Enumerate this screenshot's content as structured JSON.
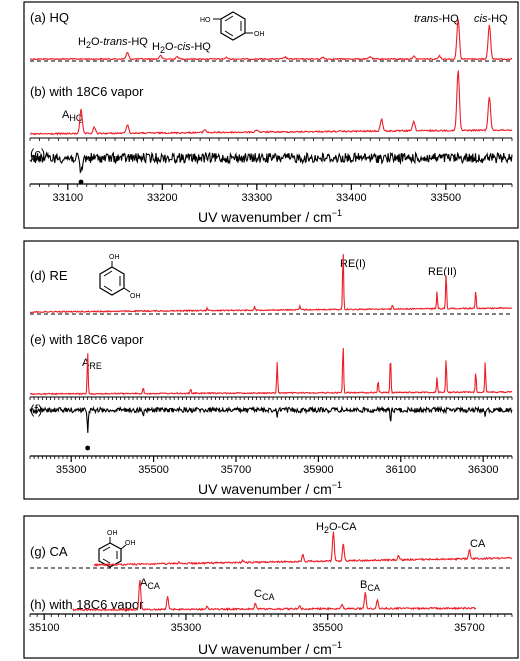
{
  "chart_data": [
    {
      "type": "line",
      "xlabel": "UV wavenumber / cm",
      "xlabel_sup": "−1",
      "xlim": [
        33060,
        33570
      ],
      "xticks": [
        33100,
        33200,
        33300,
        33400,
        33500
      ],
      "tick_labels": [
        "33100",
        "33200",
        "33300",
        "33400",
        "33500"
      ],
      "grid": false,
      "traces": [
        {
          "panel": "(a) HQ",
          "color": "#ee1c25",
          "peaks": [
            {
              "x": 33163,
              "h": 0.16
            },
            {
              "x": 33198,
              "h": 0.09
            },
            {
              "x": 33216,
              "h": 0.06
            },
            {
              "x": 33268,
              "h": 0.04
            },
            {
              "x": 33330,
              "h": 0.05
            },
            {
              "x": 33370,
              "h": 0.04
            },
            {
              "x": 33420,
              "h": 0.06
            },
            {
              "x": 33466,
              "h": 0.07
            },
            {
              "x": 33493,
              "h": 0.08
            },
            {
              "x": 33513,
              "h": 1.0
            },
            {
              "x": 33546,
              "h": 0.85
            }
          ]
        },
        {
          "panel": "(b) with 18C6 vapor",
          "color": "#ee1c25",
          "peaks": [
            {
              "x": 33114,
              "h": 0.4
            },
            {
              "x": 33128,
              "h": 0.1
            },
            {
              "x": 33163,
              "h": 0.14
            },
            {
              "x": 33245,
              "h": 0.05
            },
            {
              "x": 33300,
              "h": 0.04
            },
            {
              "x": 33432,
              "h": 0.2
            },
            {
              "x": 33466,
              "h": 0.15
            },
            {
              "x": 33513,
              "h": 1.0
            },
            {
              "x": 33546,
              "h": 0.55
            }
          ]
        },
        {
          "panel": "(c)",
          "color": "#000000",
          "peaks": [
            {
              "x": 33114,
              "h": -0.6
            }
          ]
        }
      ],
      "labels": [
        {
          "text": "(a) HQ",
          "kind": "panel"
        },
        {
          "text": "H₂O-trans-HQ",
          "x": 33163
        },
        {
          "text": "H₂O-cis-HQ",
          "x": 33200
        },
        {
          "text": "trans-HQ",
          "x": 33513
        },
        {
          "text": "cis-HQ",
          "x": 33546
        },
        {
          "text": "(b) with 18C6 vapor",
          "kind": "panel"
        },
        {
          "text": "A",
          "sub": "HQ",
          "x": 33114
        },
        {
          "text": "(c)",
          "kind": "panel"
        }
      ]
    },
    {
      "type": "line",
      "xlabel": "UV wavenumber / cm",
      "xlabel_sup": "−1",
      "xlim": [
        35200,
        36370
      ],
      "xticks": [
        35300,
        35500,
        35700,
        35900,
        36100,
        36300
      ],
      "tick_labels": [
        "35300",
        "35500",
        "35700",
        "35900",
        "36100",
        "36300"
      ],
      "grid": false,
      "traces": [
        {
          "panel": "(d) RE",
          "color": "#ee1c25",
          "peaks": [
            {
              "x": 35630,
              "h": 0.05
            },
            {
              "x": 35745,
              "h": 0.06
            },
            {
              "x": 35855,
              "h": 0.06
            },
            {
              "x": 35960,
              "h": 1.0
            },
            {
              "x": 36080,
              "h": 0.08
            },
            {
              "x": 36188,
              "h": 0.28
            },
            {
              "x": 36210,
              "h": 0.6
            },
            {
              "x": 36282,
              "h": 0.3
            }
          ]
        },
        {
          "panel": "(e) with 18C6 vapor",
          "color": "#ee1c25",
          "peaks": [
            {
              "x": 35340,
              "h": 0.72
            },
            {
              "x": 35475,
              "h": 0.1
            },
            {
              "x": 35590,
              "h": 0.08
            },
            {
              "x": 35800,
              "h": 0.52
            },
            {
              "x": 35960,
              "h": 0.82
            },
            {
              "x": 36045,
              "h": 0.2
            },
            {
              "x": 36075,
              "h": 0.62
            },
            {
              "x": 36188,
              "h": 0.25
            },
            {
              "x": 36210,
              "h": 0.58
            },
            {
              "x": 36282,
              "h": 0.35
            },
            {
              "x": 36305,
              "h": 0.5
            }
          ]
        },
        {
          "panel": "(f)",
          "color": "#000000",
          "peaks": [
            {
              "x": 35340,
              "h": -0.9
            },
            {
              "x": 35475,
              "h": -0.2
            },
            {
              "x": 35800,
              "h": -0.35
            },
            {
              "x": 36075,
              "h": -0.45
            },
            {
              "x": 36305,
              "h": -0.2
            }
          ]
        }
      ],
      "labels": [
        {
          "text": "(d) RE",
          "kind": "panel"
        },
        {
          "text": "RE(I)",
          "x": 35960
        },
        {
          "text": "RE(II)",
          "x": 36210
        },
        {
          "text": "(e) with 18C6 vapor",
          "kind": "panel"
        },
        {
          "text": "A",
          "sub": "RE",
          "x": 35340
        },
        {
          "text": "(f)",
          "kind": "panel"
        }
      ]
    },
    {
      "type": "line",
      "xlabel": "UV wavenumber / cm",
      "xlabel_sup": "−1",
      "xlim": [
        35080,
        35760
      ],
      "xticks": [
        35100,
        35300,
        35500,
        35700
      ],
      "tick_labels": [
        "35100",
        "35300",
        "35500",
        "35700"
      ],
      "grid": false,
      "traces": [
        {
          "panel": "(g) CA",
          "color": "#ee1c25",
          "peaks": [
            {
              "x": 35290,
              "h": 0.05
            },
            {
              "x": 35380,
              "h": 0.06
            },
            {
              "x": 35465,
              "h": 0.25
            },
            {
              "x": 35508,
              "h": 1.0
            },
            {
              "x": 35522,
              "h": 0.6
            },
            {
              "x": 35600,
              "h": 0.15
            },
            {
              "x": 35700,
              "h": 0.3
            }
          ]
        },
        {
          "panel": "(h) with 18C6 vapor",
          "color": "#ee1c25",
          "peaks": [
            {
              "x": 35235,
              "h": 1.0
            },
            {
              "x": 35274,
              "h": 0.45
            },
            {
              "x": 35330,
              "h": 0.1
            },
            {
              "x": 35398,
              "h": 0.2
            },
            {
              "x": 35460,
              "h": 0.1
            },
            {
              "x": 35520,
              "h": 0.15
            },
            {
              "x": 35553,
              "h": 0.55
            },
            {
              "x": 35570,
              "h": 0.3
            }
          ]
        }
      ],
      "labels": [
        {
          "text": "(g) CA",
          "kind": "panel"
        },
        {
          "text": "H₂O-CA",
          "x": 35508
        },
        {
          "text": "CA",
          "x": 35700
        },
        {
          "text": "(h) with 18C6 vapor",
          "kind": "panel"
        },
        {
          "text": "A",
          "sub": "CA",
          "x": 35235
        },
        {
          "text": "C",
          "sub": "CA",
          "x": 35398
        },
        {
          "text": "B",
          "sub": "CA",
          "x": 35553
        }
      ]
    }
  ],
  "molecules": [
    {
      "name": "hydroquinone-structure",
      "atoms": [
        "HO",
        "OH"
      ]
    },
    {
      "name": "resorcinol-structure",
      "atoms": [
        "OH",
        "OH"
      ]
    },
    {
      "name": "catechol-structure",
      "atoms": [
        "OH",
        "OH"
      ]
    }
  ]
}
